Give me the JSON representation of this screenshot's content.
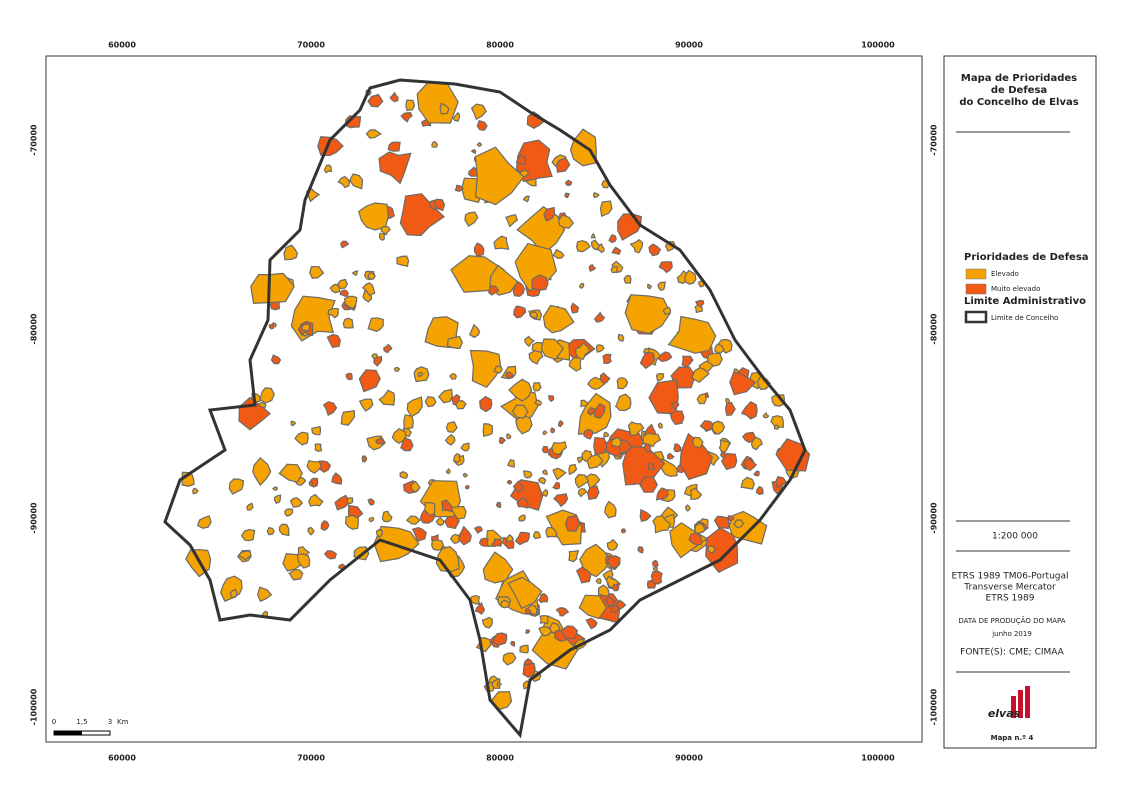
{
  "map": {
    "x_ticks": [
      60000,
      70000,
      80000,
      90000,
      100000
    ],
    "y_ticks": [
      -70000,
      -80000,
      -90000,
      -100000
    ],
    "scale_bar": {
      "labels": [
        "0",
        "1,5",
        "3"
      ],
      "unit": "Km"
    }
  },
  "panel": {
    "title_lines": [
      "Mapa de Prioridades",
      "de Defesa",
      "do Concelho de Elvas"
    ],
    "legend": {
      "heading": "Prioridades de Defesa",
      "items": [
        {
          "label": "Elevado",
          "color": "#f5a300"
        },
        {
          "label": "Muito elevado",
          "color": "#f05a14"
        }
      ],
      "boundary_heading": "Limite Administrativo",
      "boundary_label": "Limite de Concelho"
    },
    "scale": "1:200 000",
    "projection": [
      "ETRS 1989 TM06-Portugal",
      "Transverse Mercator",
      "ETRS 1989"
    ],
    "date_heading": "DATA DE PRODUÇÃO DO MAPA",
    "date": "junho 2019",
    "sources": "FONTE(S): CME; CIMAA",
    "logo": "elvas",
    "map_number": "Mapa n.º 4"
  }
}
